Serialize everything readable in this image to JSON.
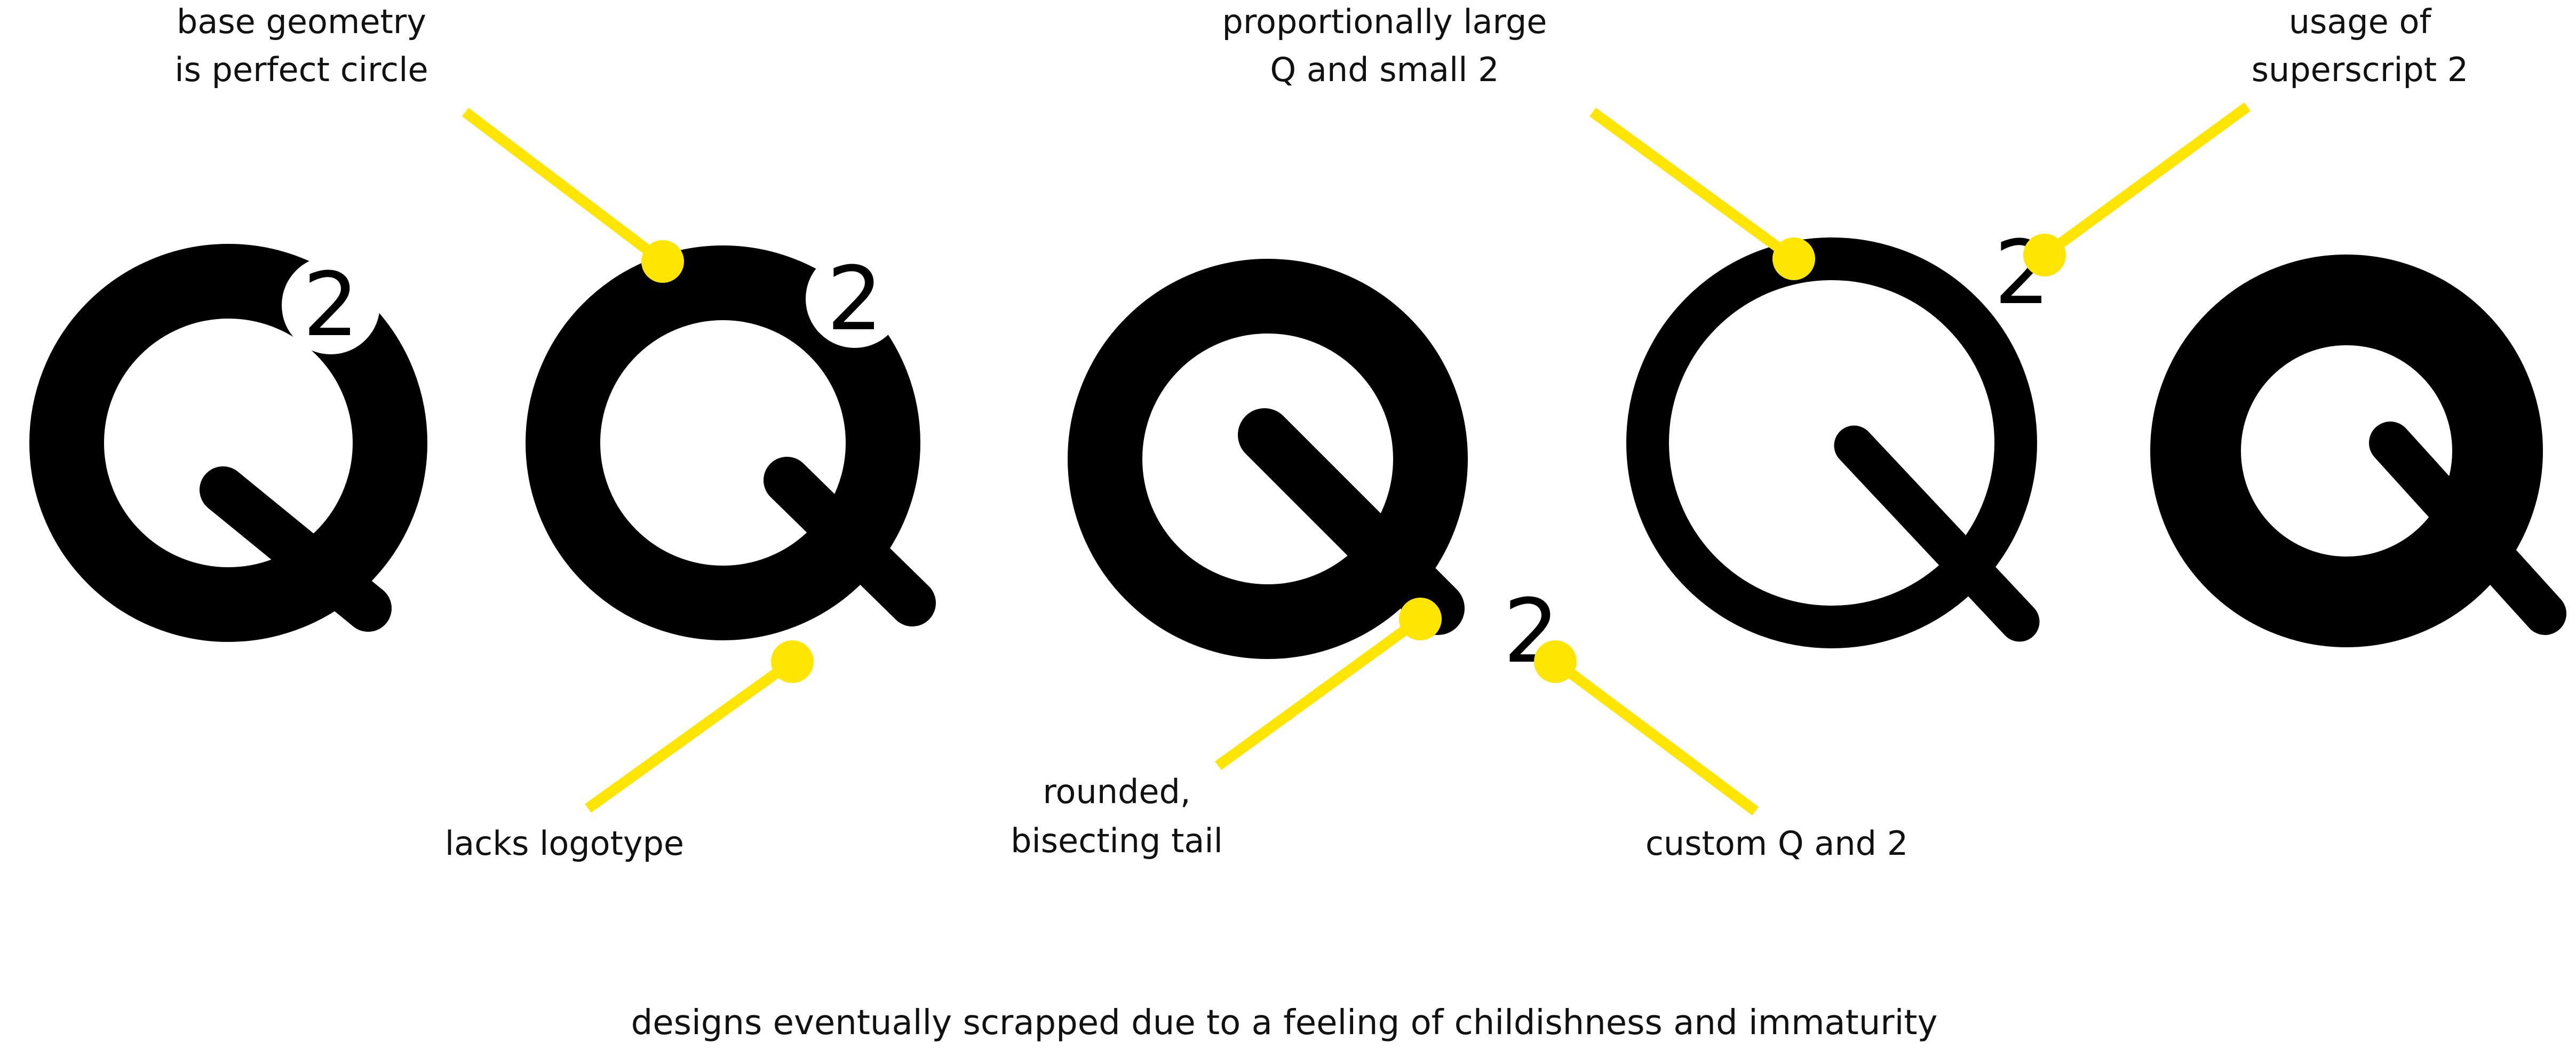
{
  "colors": {
    "accent": "#ffe500",
    "ink": "#000000",
    "background": "#ffffff"
  },
  "marks": {
    "letter": "Q",
    "exponent": "2"
  },
  "annotations": [
    {
      "id": "base-geometry",
      "lines": [
        "base geometry",
        "is perfect circle"
      ]
    },
    {
      "id": "proportionally-large",
      "lines": [
        "proportionally large",
        "Q and small 2"
      ]
    },
    {
      "id": "usage-superscript",
      "lines": [
        "usage of",
        "superscript 2"
      ]
    },
    {
      "id": "lacks-logotype",
      "lines": [
        "lacks logotype"
      ]
    },
    {
      "id": "rounded-tail",
      "lines": [
        "rounded,",
        "bisecting tail"
      ]
    },
    {
      "id": "custom-q2",
      "lines": [
        "custom Q and 2"
      ]
    }
  ],
  "caption": "designs eventually scrapped due to a feeling of childishness and immaturity"
}
